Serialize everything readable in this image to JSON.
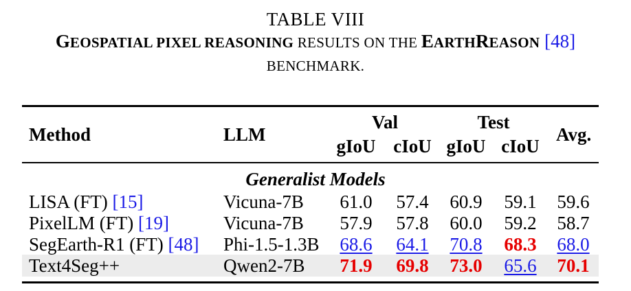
{
  "caption": {
    "line1": "TABLE VIII",
    "line2_bold_first": "G",
    "line2_bold_rest": "EOSPATIAL PIXEL REASONING",
    "line2_normal": " RESULTS ON THE ",
    "line2_bold2_first": "E",
    "line2_bold2_mid": "ARTH",
    "line2_bold2_R": "R",
    "line2_bold2_rest": "EASON",
    "line2_cite": "[48]",
    "line3": "BENCHMARK."
  },
  "header": {
    "method": "Method",
    "llm": "LLM",
    "val": "Val",
    "test": "Test",
    "avg": "Avg.",
    "giou_val": "gIoU",
    "ciou_val": "cIoU",
    "giou_test": "gIoU",
    "ciou_test": "cIoU"
  },
  "group": "Generalist Models",
  "rows": [
    {
      "method": "LISA (FT) ",
      "cite": "[15]",
      "llm": "Vicuna-7B",
      "v1": "61.0",
      "v2": "57.4",
      "v3": "60.9",
      "v4": "59.1",
      "v5": "59.6"
    },
    {
      "method": "PixelLM (FT) ",
      "cite": "[19]",
      "llm": "Vicuna-7B",
      "v1": "57.9",
      "v2": "57.8",
      "v3": "60.0",
      "v4": "59.2",
      "v5": "58.7"
    },
    {
      "method": "SegEarth-R1 (FT) ",
      "cite": "[48]",
      "llm": "Phi-1.5-1.3B",
      "v1": "68.6",
      "v2": "64.1",
      "v3": "70.8",
      "v4": "68.3",
      "v5": "68.0"
    },
    {
      "method": "Text4Seg++",
      "cite": "",
      "llm": "Qwen2-7B",
      "v1": "71.9",
      "v2": "69.8",
      "v3": "73.0",
      "v4": "65.6",
      "v5": "70.1"
    }
  ],
  "colors": {
    "best": "#e60000",
    "second": "#1a1ae6",
    "highlight_row": "#ececec"
  }
}
